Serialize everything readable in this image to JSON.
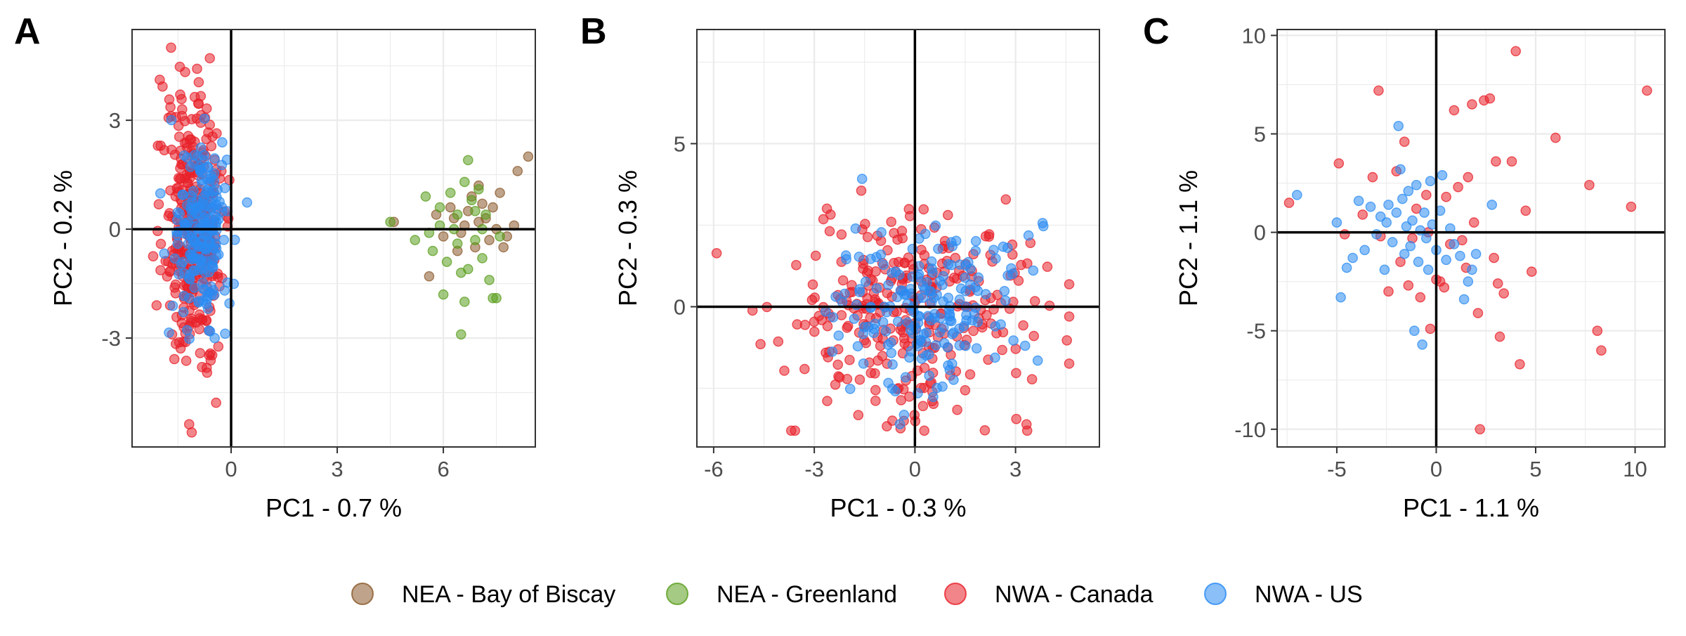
{
  "legend": [
    {
      "name": "NEA - Bay of Biscay",
      "color": "#8B5A2B"
    },
    {
      "name": "NEA - Greenland",
      "color": "#5A9E1E"
    },
    {
      "name": "NWA - Canada",
      "color": "#E8202A"
    },
    {
      "name": "NWA - US",
      "color": "#2A8BF2"
    }
  ],
  "chart_data": [
    {
      "type": "scatter",
      "panel": "A",
      "xlabel": "PC1 - 0.7 %",
      "ylabel": "PC2 - 0.2 %",
      "xlim": [
        -2.8,
        8.6
      ],
      "ylim": [
        -6.0,
        5.5
      ],
      "xticks": [
        0,
        3,
        6
      ],
      "yticks": [
        -3,
        0,
        3
      ],
      "grid": true,
      "groups": {
        "NEA - Bay of Biscay": [
          [
            4.6,
            0.2
          ],
          [
            5.8,
            0.4
          ],
          [
            6.0,
            -0.2
          ],
          [
            6.2,
            0.6
          ],
          [
            6.3,
            0.3
          ],
          [
            6.5,
            -0.1
          ],
          [
            6.7,
            0.5
          ],
          [
            6.8,
            0.9
          ],
          [
            6.9,
            -0.5
          ],
          [
            7.0,
            0.2
          ],
          [
            7.1,
            0.7
          ],
          [
            7.2,
            0.3
          ],
          [
            7.3,
            -0.3
          ],
          [
            7.4,
            0.6
          ],
          [
            7.5,
            0.0
          ],
          [
            7.6,
            1.0
          ],
          [
            7.8,
            -0.2
          ],
          [
            8.0,
            0.1
          ],
          [
            8.1,
            1.6
          ],
          [
            8.4,
            2.0
          ],
          [
            5.6,
            -1.3
          ],
          [
            6.4,
            -0.6
          ],
          [
            7.7,
            -0.5
          ],
          [
            6.6,
            0.1
          ],
          [
            7.0,
            1.2
          ]
        ],
        "NEA - Greenland": [
          [
            4.5,
            0.2
          ],
          [
            5.2,
            -0.3
          ],
          [
            5.5,
            0.9
          ],
          [
            5.7,
            -0.6
          ],
          [
            5.9,
            0.6
          ],
          [
            6.1,
            -0.9
          ],
          [
            6.3,
            0.0
          ],
          [
            6.4,
            -0.4
          ],
          [
            6.6,
            1.3
          ],
          [
            6.7,
            -1.1
          ],
          [
            6.8,
            0.8
          ],
          [
            6.9,
            -0.3
          ],
          [
            7.0,
            1.1
          ],
          [
            7.1,
            -0.8
          ],
          [
            7.2,
            0.4
          ],
          [
            7.3,
            -1.4
          ],
          [
            7.4,
            -1.9
          ],
          [
            7.5,
            -1.9
          ],
          [
            6.6,
            -2.0
          ],
          [
            6.5,
            -2.9
          ],
          [
            6.7,
            1.9
          ],
          [
            6.0,
            -1.8
          ],
          [
            5.9,
            0.1
          ],
          [
            7.1,
            0.0
          ],
          [
            6.4,
            0.4
          ],
          [
            5.6,
            -0.1
          ],
          [
            6.2,
            1.0
          ],
          [
            7.6,
            -0.2
          ],
          [
            6.9,
            0.5
          ],
          [
            6.5,
            -1.2
          ]
        ],
        "NWA - Canada": "generated",
        "NWA - US": "generated"
      }
    },
    {
      "type": "scatter",
      "panel": "B",
      "xlabel": "PC1 - 0.3 %",
      "ylabel": "PC2 - 0.3 %",
      "xlim": [
        -6.5,
        5.5
      ],
      "ylim": [
        -4.3,
        8.5
      ],
      "xticks": [
        -6,
        -3,
        0,
        3
      ],
      "yticks": [
        0,
        5
      ],
      "grid": true,
      "groups": {
        "NWA - Canada": "generated",
        "NWA - US": "generated"
      }
    },
    {
      "type": "scatter",
      "panel": "C",
      "xlabel": "PC1 - 1.1 %",
      "ylabel": "PC2 - 1.1 %",
      "xlim": [
        -8.0,
        11.5
      ],
      "ylim": [
        -10.9,
        10.3
      ],
      "xticks": [
        -5,
        0,
        5,
        10
      ],
      "yticks": [
        -10,
        -5,
        0,
        5,
        10
      ],
      "grid": true,
      "groups": {
        "NWA - Canada": [
          [
            -7.4,
            1.5
          ],
          [
            -4.9,
            3.5
          ],
          [
            -4.6,
            -0.1
          ],
          [
            -3.2,
            2.8
          ],
          [
            -2.9,
            7.2
          ],
          [
            -2.0,
            3.1
          ],
          [
            -1.6,
            4.6
          ],
          [
            -1.4,
            -2.7
          ],
          [
            -1.2,
            -0.3
          ],
          [
            -0.8,
            -3.3
          ],
          [
            -0.5,
            1.9
          ],
          [
            -0.3,
            -4.9
          ],
          [
            0.0,
            -2.4
          ],
          [
            0.2,
            -2.5
          ],
          [
            0.5,
            1.8
          ],
          [
            0.7,
            -0.6
          ],
          [
            0.9,
            6.2
          ],
          [
            1.1,
            2.3
          ],
          [
            1.3,
            -0.4
          ],
          [
            1.6,
            2.8
          ],
          [
            1.8,
            6.5
          ],
          [
            2.1,
            -4.1
          ],
          [
            2.2,
            -10.0
          ],
          [
            2.4,
            6.7
          ],
          [
            2.7,
            6.8
          ],
          [
            3.0,
            3.6
          ],
          [
            3.2,
            -5.3
          ],
          [
            3.4,
            -3.1
          ],
          [
            3.8,
            3.6
          ],
          [
            4.0,
            9.2
          ],
          [
            4.2,
            -6.7
          ],
          [
            4.5,
            1.1
          ],
          [
            4.8,
            -2.0
          ],
          [
            6.0,
            4.8
          ],
          [
            7.7,
            2.4
          ],
          [
            8.1,
            -5.0
          ],
          [
            8.3,
            -6.0
          ],
          [
            9.8,
            1.3
          ],
          [
            10.6,
            7.2
          ],
          [
            -2.8,
            -0.2
          ],
          [
            -1.8,
            -1.5
          ],
          [
            0.4,
            -2.8
          ],
          [
            1.5,
            -1.8
          ],
          [
            2.9,
            -1.3
          ],
          [
            -3.7,
            0.9
          ],
          [
            -0.4,
            0.0
          ],
          [
            3.1,
            -2.6
          ],
          [
            -1.0,
            1.2
          ],
          [
            1.9,
            0.5
          ],
          [
            -2.4,
            -3.0
          ]
        ],
        "NWA - US": [
          [
            -7.0,
            1.9
          ],
          [
            -5.0,
            0.5
          ],
          [
            -4.8,
            -3.3
          ],
          [
            -4.5,
            -1.8
          ],
          [
            -4.2,
            -1.3
          ],
          [
            -3.9,
            1.6
          ],
          [
            -3.6,
            -0.9
          ],
          [
            -3.3,
            1.3
          ],
          [
            -3.0,
            -0.1
          ],
          [
            -2.8,
            0.8
          ],
          [
            -2.6,
            -1.9
          ],
          [
            -2.4,
            1.4
          ],
          [
            -2.2,
            -0.5
          ],
          [
            -2.0,
            1.0
          ],
          [
            -1.9,
            5.4
          ],
          [
            -1.8,
            3.2
          ],
          [
            -1.6,
            -1.1
          ],
          [
            -1.5,
            0.3
          ],
          [
            -1.4,
            2.1
          ],
          [
            -1.3,
            -0.7
          ],
          [
            -1.2,
            0.6
          ],
          [
            -1.1,
            -5.0
          ],
          [
            -1.0,
            2.4
          ],
          [
            -0.9,
            -1.5
          ],
          [
            -0.8,
            0.1
          ],
          [
            -0.7,
            -5.7
          ],
          [
            -0.6,
            1.0
          ],
          [
            -0.5,
            -0.3
          ],
          [
            -0.4,
            -1.9
          ],
          [
            -0.3,
            2.6
          ],
          [
            -0.2,
            0.4
          ],
          [
            0.0,
            -0.9
          ],
          [
            0.2,
            1.1
          ],
          [
            0.3,
            2.9
          ],
          [
            0.5,
            -1.4
          ],
          [
            0.7,
            0.2
          ],
          [
            0.9,
            -0.6
          ],
          [
            1.2,
            -1.2
          ],
          [
            1.4,
            -3.4
          ],
          [
            1.6,
            -2.5
          ],
          [
            1.8,
            -1.9
          ],
          [
            2.0,
            -1.1
          ],
          [
            2.8,
            1.4
          ],
          [
            -2.5,
            0.5
          ],
          [
            -1.7,
            1.7
          ]
        ]
      }
    }
  ]
}
